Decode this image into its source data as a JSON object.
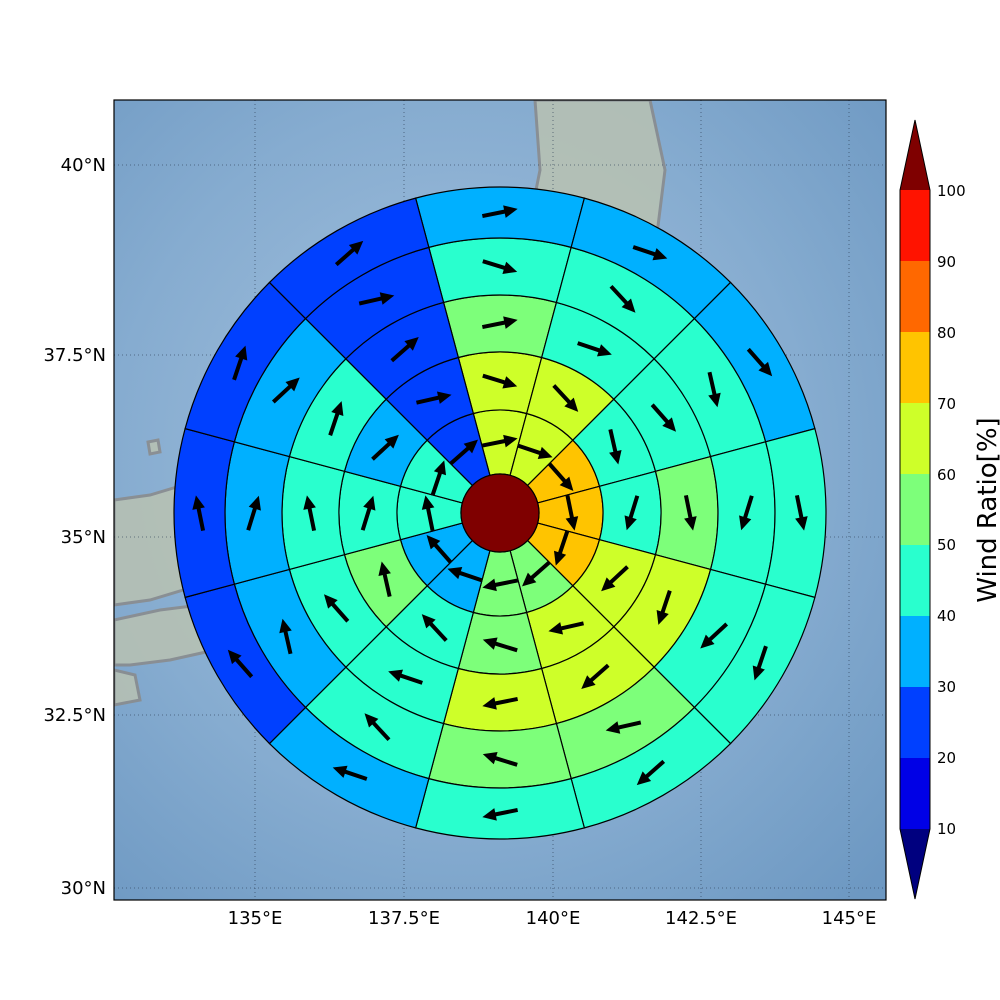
{
  "map": {
    "lat_labels": [
      "40°N",
      "37.5°N",
      "35°N",
      "32.5°N",
      "30°N"
    ],
    "lon_labels": [
      "135°E",
      "137.5°E",
      "140°E",
      "142.5°E",
      "145°E"
    ],
    "colors": {
      "ocean": "#86acd0",
      "land": "#b9c2b2",
      "coast": "#8a8a8a",
      "grid": "#2c3e55"
    }
  },
  "colorbar": {
    "title": "Wind Ratio[%]",
    "tick_labels": [
      "10",
      "20",
      "30",
      "40",
      "50",
      "60",
      "70",
      "80",
      "90",
      "100"
    ],
    "colors": [
      "#00007f",
      "#0000e6",
      "#0040ff",
      "#00b0ff",
      "#29ffce",
      "#7dff7a",
      "#ceff29",
      "#ffc400",
      "#ff6800",
      "#ff1300",
      "#7f0000"
    ]
  },
  "chart_data": {
    "type": "heatmap",
    "description_free": true,
    "sectors": 12,
    "rings": 6,
    "center_value": 100,
    "ratios": [
      [
        60,
        60,
        70,
        70,
        70,
        50,
        50,
        30,
        30,
        40,
        40,
        20
      ],
      [
        60,
        60,
        40,
        40,
        60,
        60,
        50,
        40,
        50,
        40,
        30,
        20
      ],
      [
        50,
        40,
        40,
        50,
        60,
        60,
        60,
        40,
        40,
        40,
        40,
        20
      ],
      [
        40,
        40,
        40,
        40,
        40,
        50,
        50,
        40,
        30,
        30,
        30,
        20
      ],
      [
        30,
        30,
        30,
        40,
        40,
        40,
        40,
        30,
        20,
        20,
        20,
        20
      ],
      [
        30,
        30,
        30,
        40,
        40,
        40,
        40,
        20,
        20,
        10,
        10,
        10
      ]
    ]
  }
}
